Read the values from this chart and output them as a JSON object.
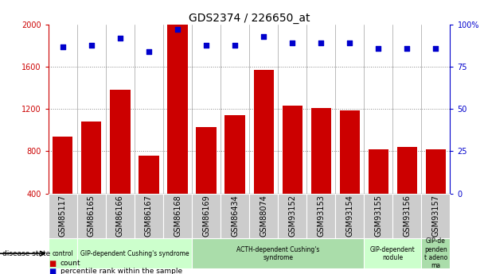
{
  "title": "GDS2374 / 226650_at",
  "samples": [
    "GSM85117",
    "GSM86165",
    "GSM86166",
    "GSM86167",
    "GSM86168",
    "GSM86169",
    "GSM86434",
    "GSM88074",
    "GSM93152",
    "GSM93153",
    "GSM93154",
    "GSM93155",
    "GSM93156",
    "GSM93157"
  ],
  "counts": [
    940,
    1080,
    1380,
    760,
    2000,
    1030,
    1140,
    1570,
    1230,
    1210,
    1190,
    820,
    840,
    820
  ],
  "percentiles": [
    87,
    88,
    92,
    84,
    97,
    88,
    88,
    93,
    89,
    89,
    89,
    86,
    86,
    86
  ],
  "bar_color": "#cc0000",
  "dot_color": "#0000cc",
  "grid_color": "#888888",
  "ymin": 400,
  "ymax": 2000,
  "y_ticks": [
    400,
    800,
    1200,
    1600,
    2000
  ],
  "y2min": 0,
  "y2max": 100,
  "y2_ticks": [
    0,
    25,
    50,
    75,
    100
  ],
  "disease_groups": [
    {
      "label": "control",
      "start": 0,
      "end": 1,
      "color": "#ccffcc"
    },
    {
      "label": "GIP-dependent Cushing's syndrome",
      "start": 1,
      "end": 5,
      "color": "#ccffcc"
    },
    {
      "label": "ACTH-dependent Cushing's\nsyndrome",
      "start": 5,
      "end": 11,
      "color": "#aaddaa"
    },
    {
      "label": "GIP-dependent\nnodule",
      "start": 11,
      "end": 13,
      "color": "#ccffcc"
    },
    {
      "label": "GIP-de\npenden\nt adeno\nma",
      "start": 13,
      "end": 14,
      "color": "#aaddaa"
    }
  ],
  "ylabel_color": "#cc0000",
  "y2label_color": "#0000cc",
  "title_fontsize": 10,
  "tick_fontsize": 7,
  "label_fontsize": 7.5,
  "sample_box_color": "#cccccc",
  "bar_width": 0.7
}
